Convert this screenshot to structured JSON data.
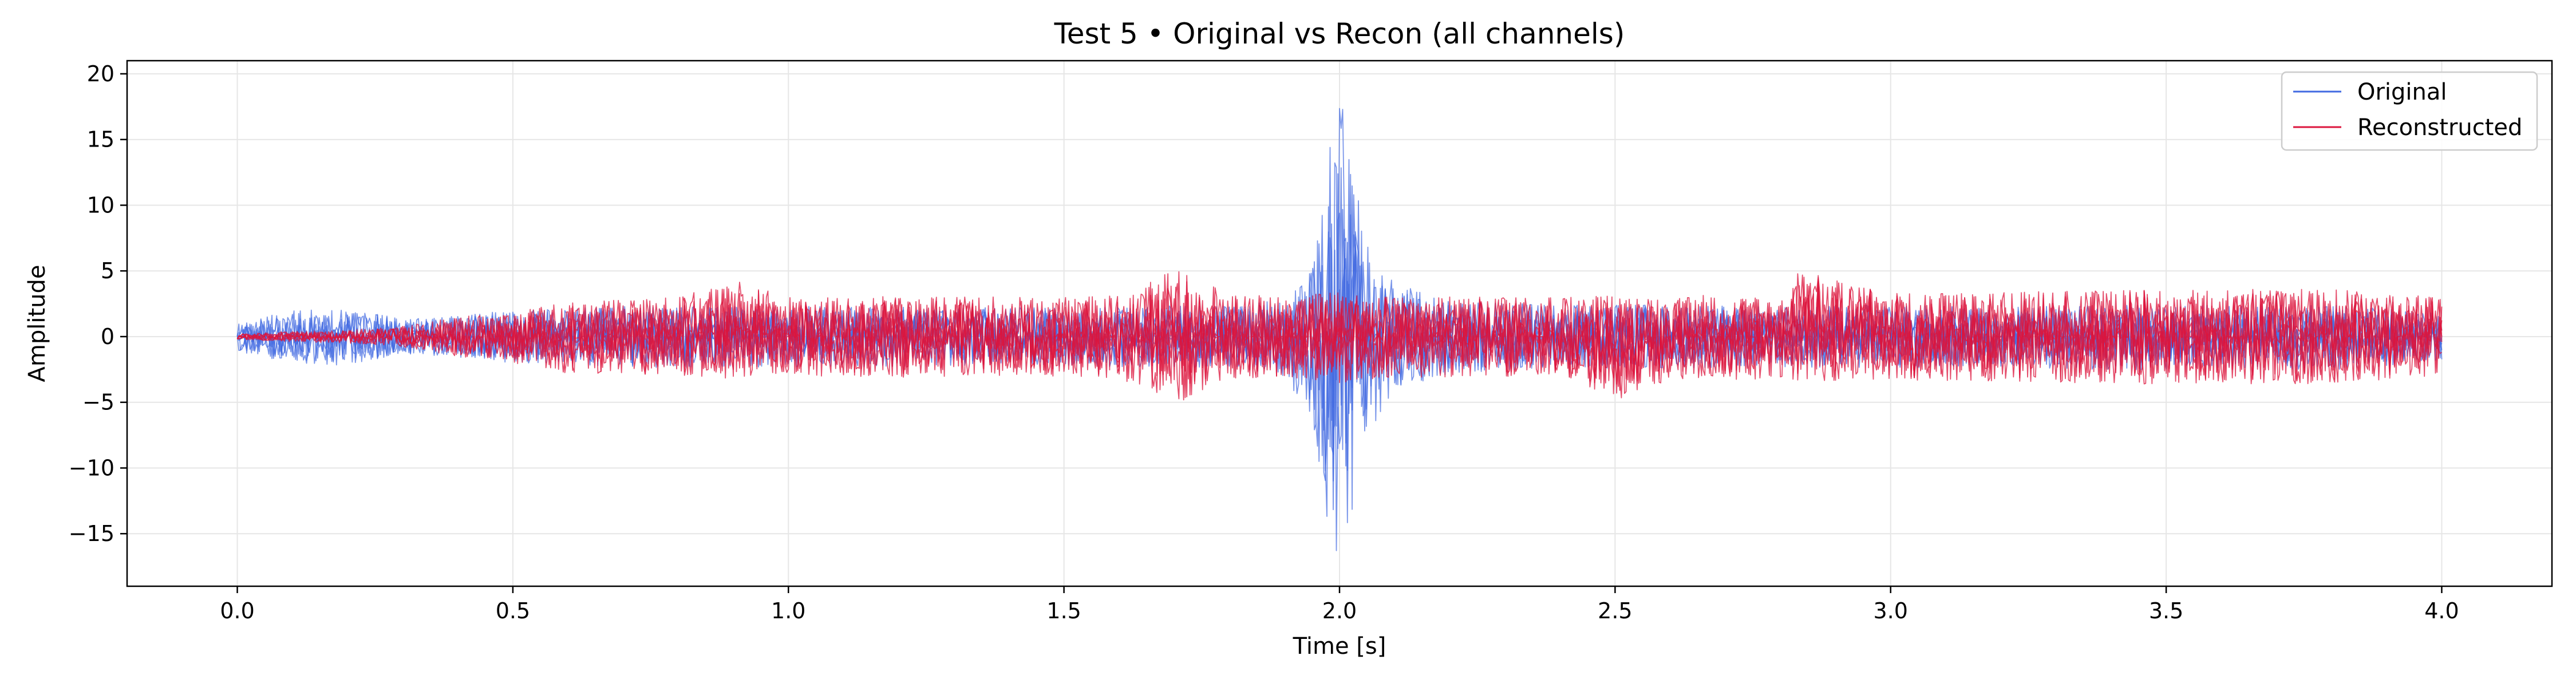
{
  "chart_data": {
    "type": "line",
    "title": "Test 5 • Original vs Recon (all channels)",
    "xlabel": "Time [s]",
    "ylabel": "Amplitude",
    "xlim": [
      -0.2,
      4.2
    ],
    "ylim": [
      -19,
      21
    ],
    "xticks": [
      0.0,
      0.5,
      1.0,
      1.5,
      2.0,
      2.5,
      3.0,
      3.5,
      4.0
    ],
    "xtick_labels": [
      "0.0",
      "0.5",
      "1.0",
      "1.5",
      "2.0",
      "2.5",
      "3.0",
      "3.5",
      "4.0"
    ],
    "yticks": [
      -15,
      -10,
      -5,
      0,
      5,
      10,
      15,
      20
    ],
    "ytick_labels": [
      "−15",
      "−10",
      "−5",
      "0",
      "5",
      "10",
      "15",
      "20"
    ],
    "grid": true,
    "legend_position": "top-right",
    "series": [
      {
        "name": "Original",
        "color": "#4169e1",
        "envelope": {
          "x": [
            0.0,
            0.1,
            0.2,
            0.3,
            0.4,
            0.5,
            0.6,
            0.8,
            1.0,
            1.2,
            1.4,
            1.6,
            1.8,
            1.9,
            1.95,
            1.98,
            2.0,
            2.02,
            2.05,
            2.1,
            2.2,
            2.4,
            2.6,
            2.8,
            3.0,
            3.2,
            3.4,
            3.6,
            3.8,
            4.0
          ],
          "upper": [
            1.0,
            2.0,
            2.2,
            1.3,
            1.6,
            2.0,
            2.2,
            2.4,
            2.3,
            2.3,
            2.2,
            2.3,
            2.4,
            2.8,
            5.5,
            14.0,
            19.0,
            14.0,
            7.0,
            4.0,
            2.8,
            2.4,
            2.4,
            2.3,
            2.4,
            2.3,
            2.4,
            2.4,
            2.4,
            1.8
          ],
          "lower": [
            -1.2,
            -2.0,
            -2.2,
            -1.3,
            -1.6,
            -2.0,
            -2.2,
            -2.4,
            -2.3,
            -2.3,
            -2.2,
            -2.3,
            -2.4,
            -3.0,
            -6.5,
            -15.0,
            -17.5,
            -14.5,
            -7.5,
            -4.0,
            -2.8,
            -2.4,
            -2.4,
            -2.3,
            -2.4,
            -2.3,
            -2.6,
            -2.4,
            -2.6,
            -1.8
          ]
        }
      },
      {
        "name": "Reconstructed",
        "color": "#dc143c",
        "envelope": {
          "x": [
            0.0,
            0.1,
            0.2,
            0.3,
            0.4,
            0.5,
            0.6,
            0.8,
            0.9,
            1.0,
            1.2,
            1.4,
            1.6,
            1.71,
            1.8,
            1.9,
            2.0,
            2.1,
            2.2,
            2.4,
            2.51,
            2.6,
            2.8,
            2.83,
            3.0,
            3.2,
            3.4,
            3.6,
            3.8,
            4.0
          ],
          "upper": [
            0.2,
            0.4,
            0.5,
            0.8,
            1.5,
            2.0,
            2.6,
            3.0,
            4.4,
            3.0,
            3.1,
            3.0,
            3.1,
            5.3,
            3.2,
            3.1,
            3.4,
            3.2,
            3.1,
            3.0,
            3.1,
            3.2,
            3.2,
            5.2,
            3.3,
            3.4,
            3.5,
            3.6,
            3.6,
            3.0
          ],
          "lower": [
            -0.2,
            -0.4,
            -0.5,
            -0.8,
            -1.5,
            -2.0,
            -2.8,
            -3.0,
            -3.2,
            -3.0,
            -3.1,
            -3.0,
            -3.2,
            -5.0,
            -3.2,
            -3.1,
            -3.5,
            -3.2,
            -3.1,
            -3.0,
            -5.1,
            -3.2,
            -3.3,
            -3.4,
            -3.3,
            -3.4,
            -3.6,
            -3.6,
            -3.6,
            -3.0
          ]
        }
      }
    ]
  }
}
